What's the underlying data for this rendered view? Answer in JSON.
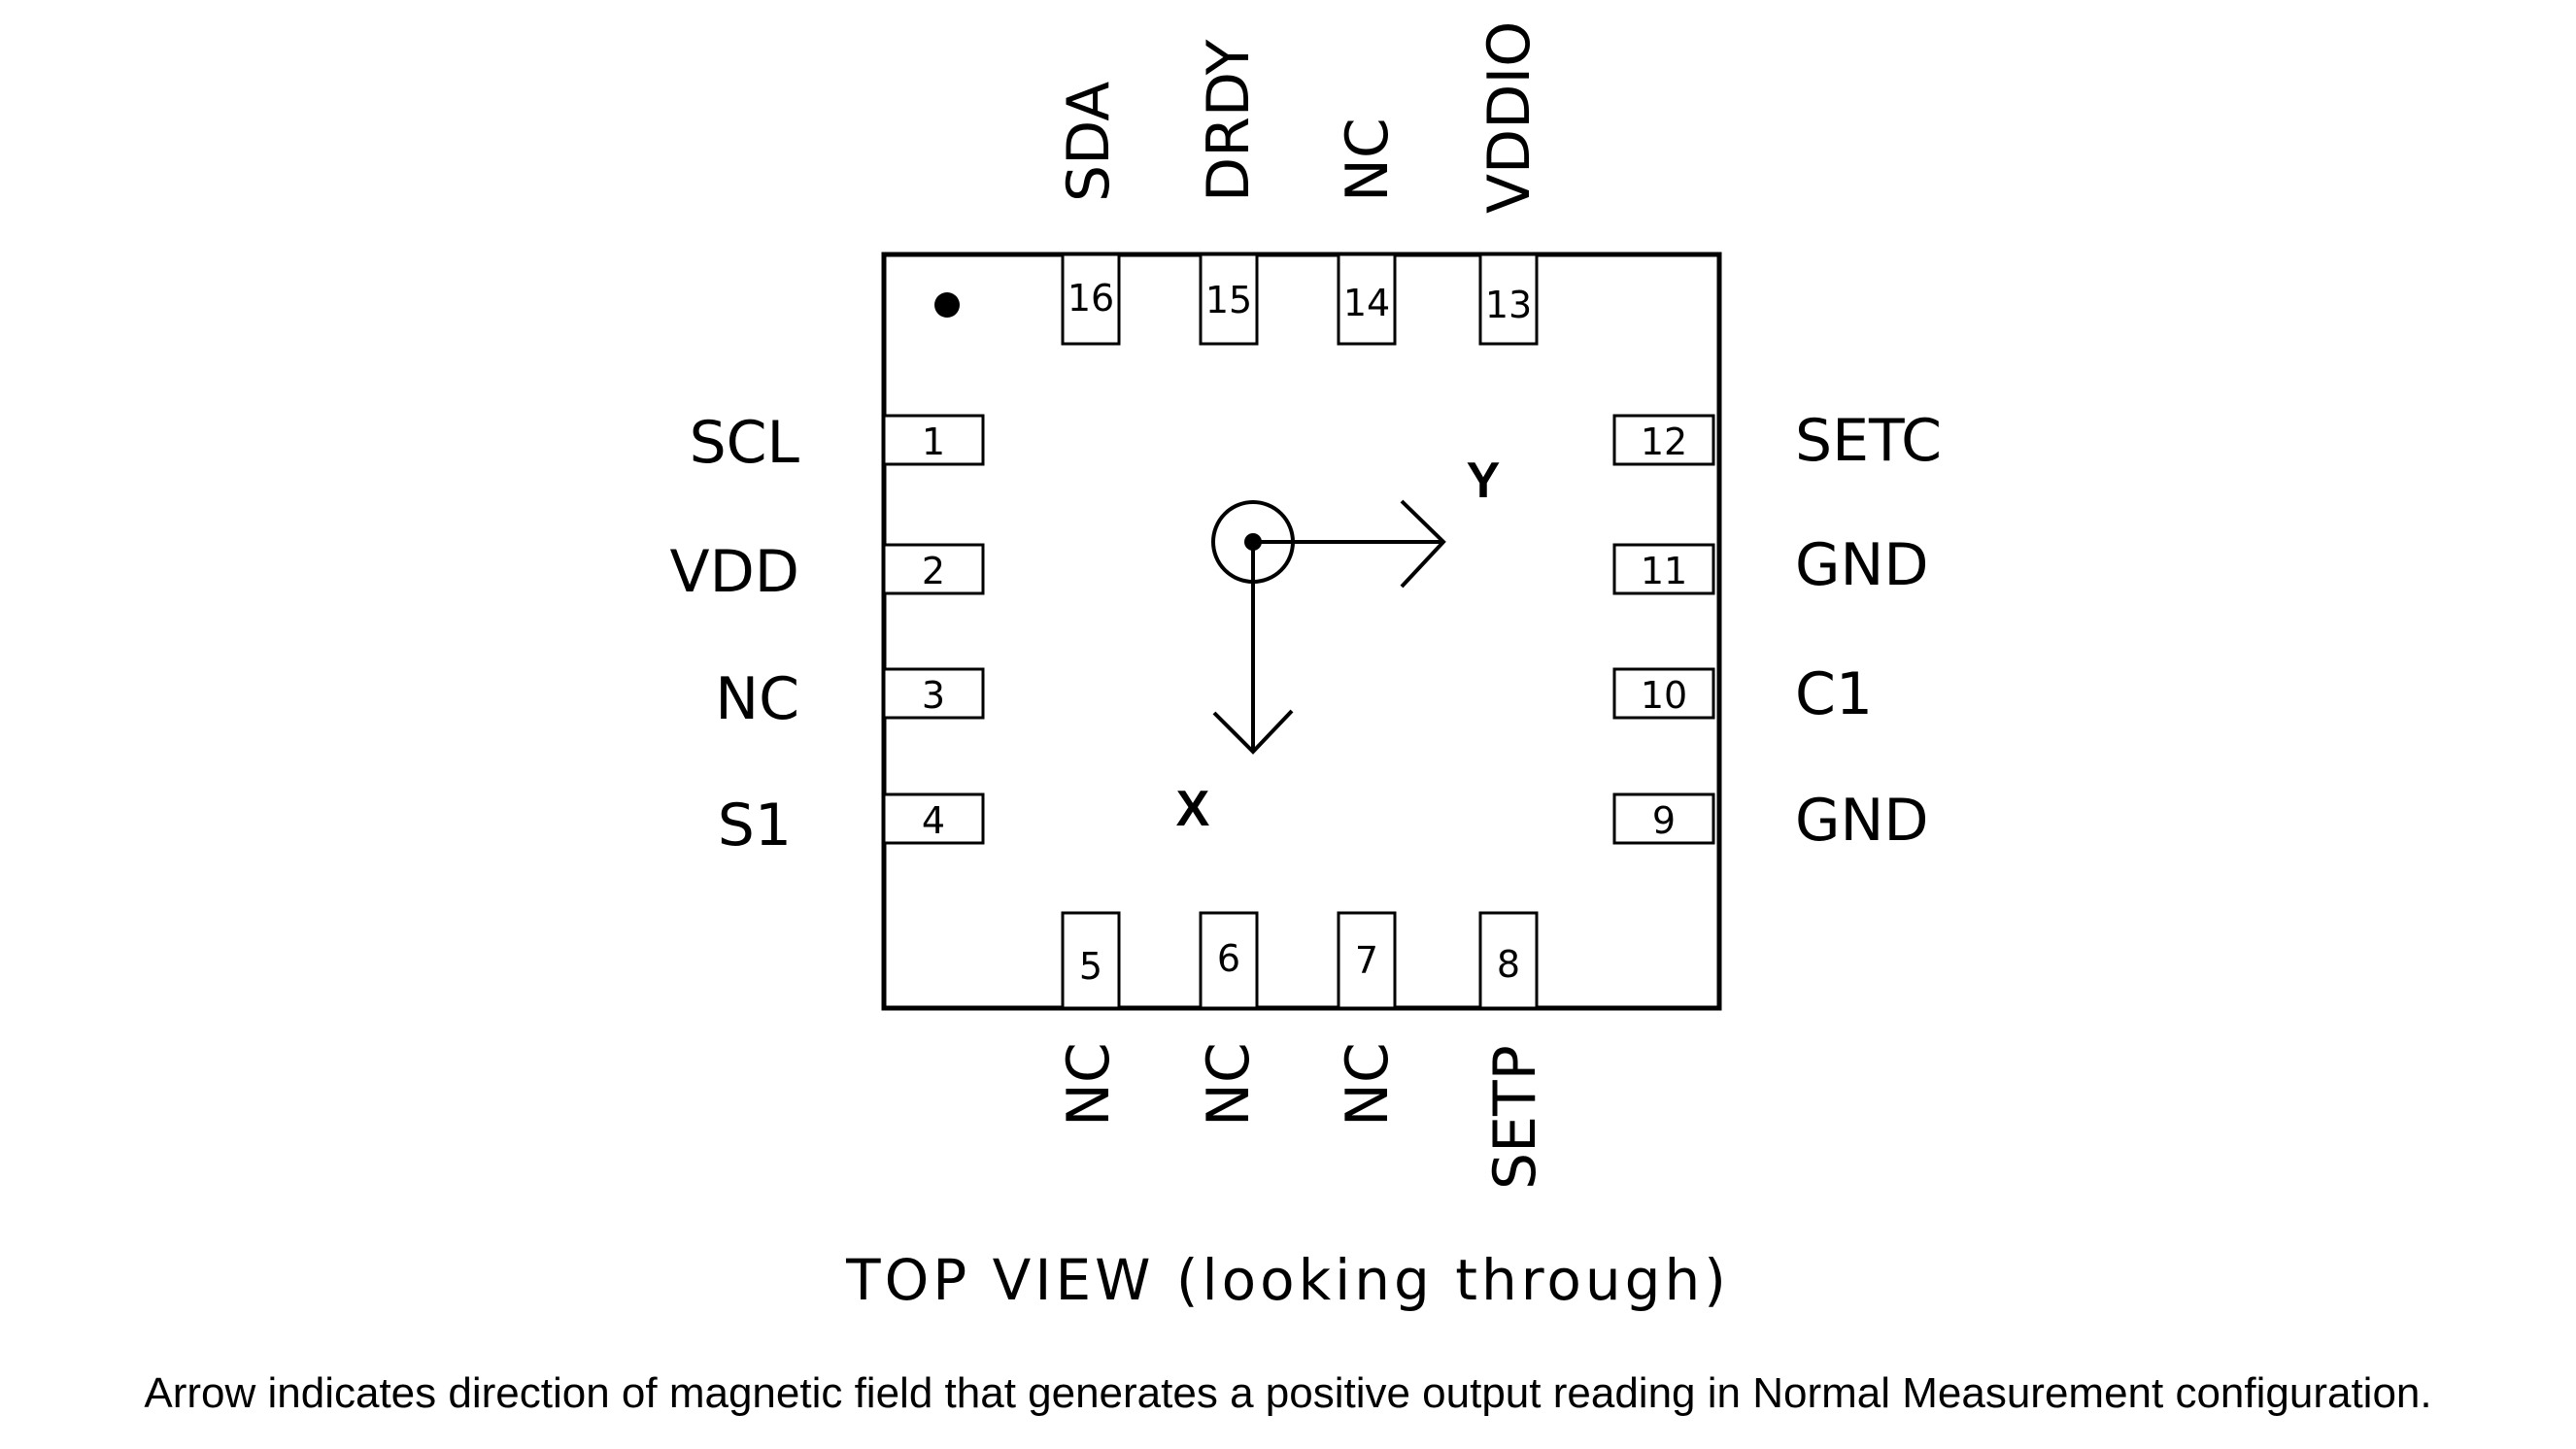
{
  "pins": {
    "p1": {
      "number": "1",
      "name": "SCL"
    },
    "p2": {
      "number": "2",
      "name": "VDD"
    },
    "p3": {
      "number": "3",
      "name": "NC"
    },
    "p4": {
      "number": "4",
      "name": "S1"
    },
    "p5": {
      "number": "5",
      "name": "NC"
    },
    "p6": {
      "number": "6",
      "name": "NC"
    },
    "p7": {
      "number": "7",
      "name": "NC"
    },
    "p8": {
      "number": "8",
      "name": "SETP"
    },
    "p9": {
      "number": "9",
      "name": "GND"
    },
    "p10": {
      "number": "10",
      "name": "C1"
    },
    "p11": {
      "number": "11",
      "name": "GND"
    },
    "p12": {
      "number": "12",
      "name": "SETC"
    },
    "p13": {
      "number": "13",
      "name": "VDDIO"
    },
    "p14": {
      "number": "14",
      "name": "NC"
    },
    "p15": {
      "number": "15",
      "name": "DRDY"
    },
    "p16": {
      "number": "16",
      "name": "SDA"
    }
  },
  "axes": {
    "x_label": "X",
    "y_label": "Y"
  },
  "view_title": "TOP VIEW (looking through)",
  "caption": "Arrow indicates direction of magnetic field that generates a positive output reading in Normal Measurement configuration."
}
